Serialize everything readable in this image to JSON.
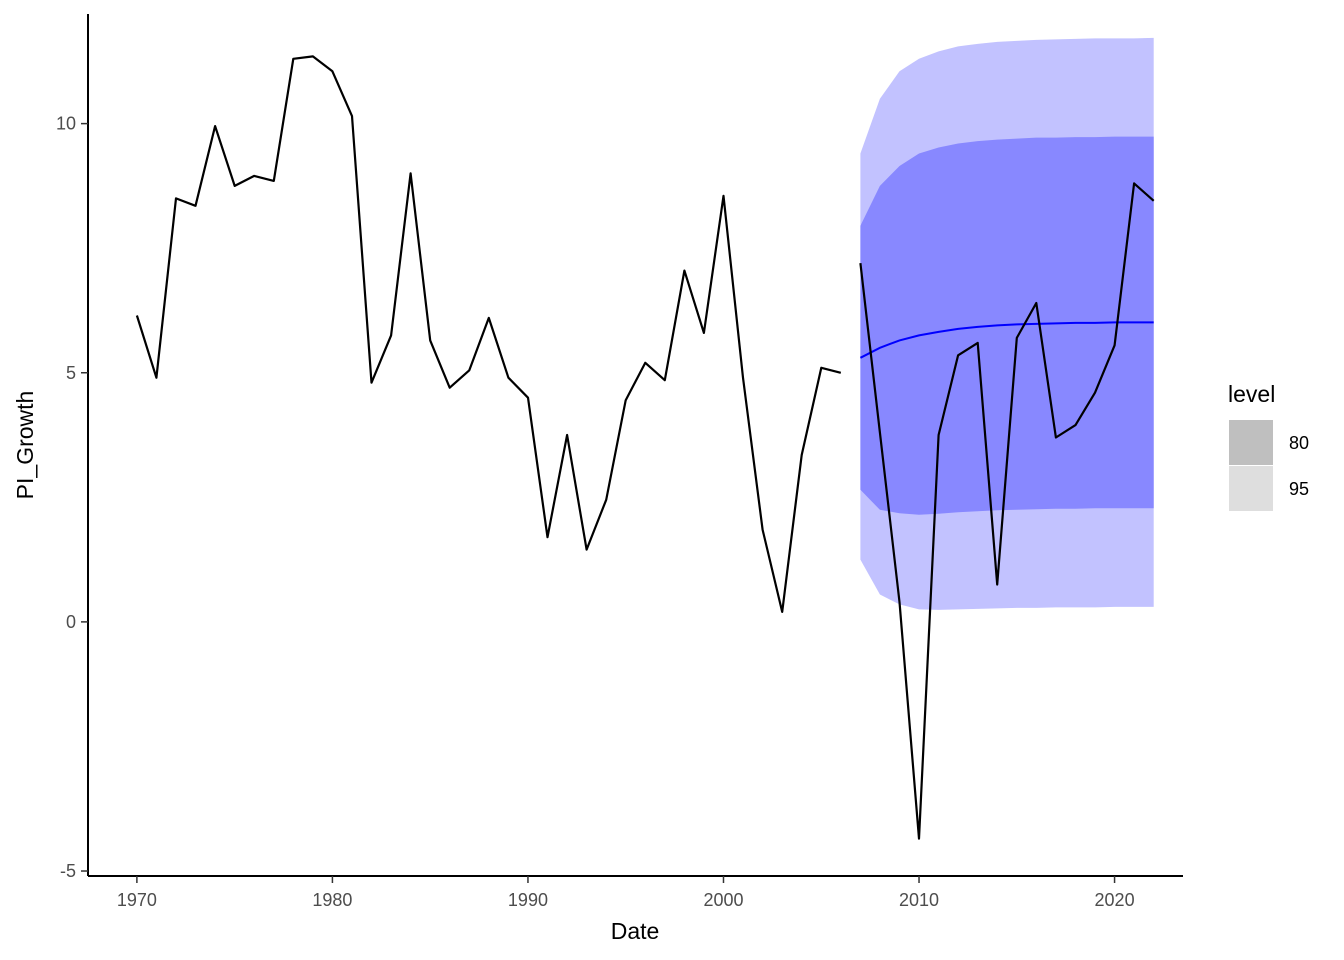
{
  "chart_data": {
    "type": "line",
    "xlabel": "Date",
    "ylabel": "PI_Growth",
    "xlim": [
      1967.5,
      2023.5
    ],
    "ylim": [
      -5.1,
      12.2
    ],
    "x_ticks": [
      1970,
      1980,
      1990,
      2000,
      2010,
      2020
    ],
    "x_tick_labels": [
      "1970",
      "1980",
      "1990",
      "2000",
      "2010",
      "2020"
    ],
    "y_ticks": [
      -5,
      0,
      5,
      10
    ],
    "y_tick_labels": [
      "-5",
      "0",
      "5",
      "10"
    ],
    "grid": false,
    "colors": {
      "observed": "#000000",
      "forecast": "#0000ff",
      "band_80": "#8888ff",
      "band_95": "#c2c2ff",
      "legend_80": "#bfbfbf",
      "legend_95": "#dedede"
    },
    "series": [
      {
        "kind": "observed",
        "points": [
          [
            1970,
            6.15
          ],
          [
            1971,
            4.9
          ],
          [
            1972,
            8.5
          ],
          [
            1973,
            8.35
          ],
          [
            1974,
            9.95
          ],
          [
            1975,
            8.75
          ],
          [
            1976,
            8.95
          ],
          [
            1977,
            8.85
          ],
          [
            1978,
            11.3
          ],
          [
            1979,
            11.35
          ],
          [
            1980,
            11.05
          ],
          [
            1981,
            10.15
          ],
          [
            1982,
            4.8
          ],
          [
            1983,
            5.75
          ],
          [
            1984,
            9.0
          ],
          [
            1985,
            5.65
          ],
          [
            1986,
            4.7
          ],
          [
            1987,
            5.05
          ],
          [
            1988,
            6.1
          ],
          [
            1989,
            4.9
          ],
          [
            1990,
            4.5
          ],
          [
            1991,
            1.7
          ],
          [
            1992,
            3.75
          ],
          [
            1993,
            1.45
          ],
          [
            1994,
            2.45
          ],
          [
            1995,
            4.45
          ],
          [
            1996,
            5.2
          ],
          [
            1997,
            4.85
          ],
          [
            1998,
            7.05
          ],
          [
            1999,
            5.8
          ],
          [
            2000,
            8.55
          ],
          [
            2001,
            4.9
          ],
          [
            2002,
            1.85
          ],
          [
            2003,
            0.2
          ],
          [
            2004,
            3.35
          ],
          [
            2005,
            5.1
          ],
          [
            2006,
            5.0
          ]
        ]
      },
      {
        "kind": "observed",
        "points": [
          [
            2007,
            7.2
          ],
          [
            2008,
            3.8
          ],
          [
            2009,
            0.4
          ],
          [
            2010,
            -4.35
          ],
          [
            2011,
            3.75
          ],
          [
            2012,
            5.35
          ],
          [
            2013,
            5.6
          ],
          [
            2014,
            0.75
          ],
          [
            2015,
            5.7
          ],
          [
            2016,
            6.4
          ],
          [
            2017,
            3.7
          ],
          [
            2018,
            3.95
          ],
          [
            2019,
            4.6
          ],
          [
            2020,
            5.55
          ],
          [
            2021,
            8.8
          ],
          [
            2022,
            8.45
          ]
        ]
      }
    ],
    "forecast": {
      "x": [
        2007,
        2008,
        2009,
        2010,
        2011,
        2012,
        2013,
        2014,
        2015,
        2016,
        2017,
        2018,
        2019,
        2020,
        2021,
        2022
      ],
      "mean": [
        5.3,
        5.5,
        5.65,
        5.75,
        5.82,
        5.88,
        5.92,
        5.95,
        5.97,
        5.98,
        5.99,
        6.0,
        6.0,
        6.01,
        6.01,
        6.01
      ],
      "lo80": [
        2.65,
        2.25,
        2.18,
        2.15,
        2.17,
        2.2,
        2.22,
        2.24,
        2.25,
        2.26,
        2.27,
        2.27,
        2.28,
        2.28,
        2.28,
        2.28
      ],
      "hi80": [
        7.95,
        8.75,
        9.15,
        9.4,
        9.52,
        9.6,
        9.65,
        9.68,
        9.7,
        9.72,
        9.72,
        9.73,
        9.73,
        9.74,
        9.74,
        9.74
      ],
      "lo95": [
        1.25,
        0.55,
        0.35,
        0.25,
        0.24,
        0.25,
        0.26,
        0.27,
        0.28,
        0.28,
        0.29,
        0.29,
        0.29,
        0.3,
        0.3,
        0.3
      ],
      "hi95": [
        9.4,
        10.5,
        11.05,
        11.3,
        11.45,
        11.55,
        11.6,
        11.64,
        11.66,
        11.68,
        11.69,
        11.7,
        11.71,
        11.71,
        11.71,
        11.72
      ]
    },
    "legend": {
      "title": "level",
      "placement": "right",
      "items": [
        {
          "label": "80",
          "color": "#bfbfbf"
        },
        {
          "label": "95",
          "color": "#dedede"
        }
      ]
    }
  }
}
